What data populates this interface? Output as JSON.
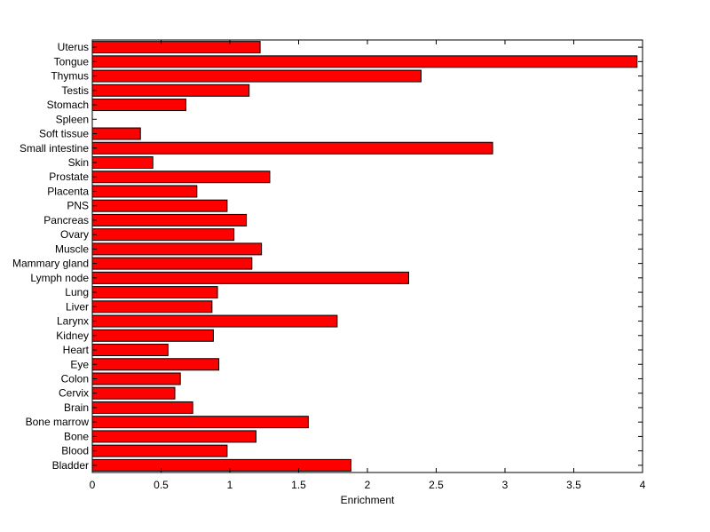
{
  "chart_data": {
    "type": "bar",
    "orientation": "horizontal",
    "title": "",
    "xlabel": "Enrichment",
    "ylabel": "",
    "xlim": [
      0,
      4
    ],
    "xticks": [
      0,
      0.5,
      1,
      1.5,
      2,
      2.5,
      3,
      3.5,
      4
    ],
    "xtick_labels": [
      "0",
      "0.5",
      "1",
      "1.5",
      "2",
      "2.5",
      "3",
      "3.5",
      "4"
    ],
    "grid": false,
    "bar_color": "#ff0000",
    "bar_edge_color": "#000000",
    "categories": [
      "Bladder",
      "Blood",
      "Bone",
      "Bone marrow",
      "Brain",
      "Cervix",
      "Colon",
      "Eye",
      "Heart",
      "Kidney",
      "Larynx",
      "Liver",
      "Lung",
      "Lymph node",
      "Mammary gland",
      "Muscle",
      "Ovary",
      "Pancreas",
      "PNS",
      "Placenta",
      "Prostate",
      "Skin",
      "Small intestine",
      "Soft tissue",
      "Spleen",
      "Stomach",
      "Testis",
      "Thymus",
      "Tongue",
      "Uterus"
    ],
    "values": [
      1.88,
      0.98,
      1.19,
      1.57,
      0.73,
      0.6,
      0.64,
      0.92,
      0.55,
      0.88,
      1.78,
      0.87,
      0.91,
      2.3,
      1.16,
      1.23,
      1.03,
      1.12,
      0.98,
      0.76,
      1.29,
      0.44,
      2.91,
      0.35,
      0.0,
      0.68,
      1.14,
      2.39,
      3.96,
      1.22
    ]
  }
}
